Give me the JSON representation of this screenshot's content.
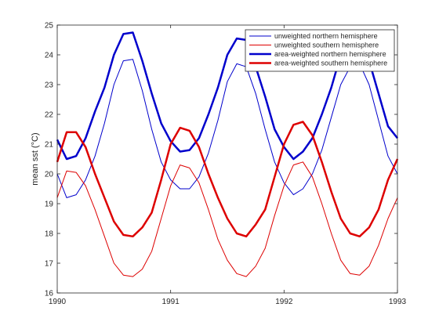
{
  "chart_data": {
    "type": "line",
    "ylabel": "mean sst (°C)",
    "xlim": [
      1990,
      1993
    ],
    "ylim": [
      16,
      25
    ],
    "x_ticks": [
      1990,
      1991,
      1992,
      1993
    ],
    "x_tick_labels": [
      "1990",
      "1991",
      "1992",
      "1993"
    ],
    "y_ticks": [
      16,
      17,
      18,
      19,
      20,
      21,
      22,
      23,
      24,
      25
    ],
    "y_tick_labels": [
      "16",
      "17",
      "18",
      "19",
      "20",
      "21",
      "22",
      "23",
      "24",
      "25"
    ],
    "grid": false,
    "legend_position": "top-right",
    "x": [
      1990.0,
      1990.0833,
      1990.1667,
      1990.25,
      1990.3333,
      1990.4167,
      1990.5,
      1990.5833,
      1990.6667,
      1990.75,
      1990.8333,
      1990.9167,
      1991.0,
      1991.0833,
      1991.1667,
      1991.25,
      1991.3333,
      1991.4167,
      1991.5,
      1991.5833,
      1991.6667,
      1991.75,
      1991.8333,
      1991.9167,
      1992.0,
      1992.0833,
      1992.1667,
      1992.25,
      1992.3333,
      1992.4167,
      1992.5,
      1992.5833,
      1992.6667,
      1992.75,
      1992.8333,
      1992.9167,
      1993.0
    ],
    "series": [
      {
        "name": "unweighted northern hemisphere",
        "color": "#0000cc",
        "width": 1,
        "values": [
          20.0,
          19.2,
          19.3,
          19.8,
          20.6,
          21.7,
          23.0,
          23.8,
          23.85,
          22.8,
          21.5,
          20.4,
          19.8,
          19.5,
          19.5,
          19.9,
          20.7,
          21.8,
          23.1,
          23.7,
          23.6,
          22.7,
          21.5,
          20.4,
          19.7,
          19.3,
          19.5,
          20.0,
          20.8,
          21.9,
          23.0,
          23.6,
          23.7,
          23.0,
          21.8,
          20.6,
          20.0
        ]
      },
      {
        "name": "unweighted southern hemisphere",
        "color": "#dd0000",
        "width": 1,
        "values": [
          19.2,
          20.1,
          20.05,
          19.6,
          18.8,
          17.9,
          17.0,
          16.6,
          16.55,
          16.8,
          17.4,
          18.5,
          19.6,
          20.3,
          20.2,
          19.7,
          18.8,
          17.8,
          17.1,
          16.65,
          16.55,
          16.9,
          17.5,
          18.6,
          19.6,
          20.3,
          20.4,
          19.9,
          19.0,
          18.0,
          17.1,
          16.65,
          16.6,
          16.9,
          17.6,
          18.5,
          19.2
        ]
      },
      {
        "name": "area-weighted northern hemisphere",
        "color": "#0000cc",
        "width": 2.5,
        "values": [
          21.15,
          20.5,
          20.6,
          21.2,
          22.1,
          22.9,
          24.0,
          24.7,
          24.75,
          23.8,
          22.7,
          21.7,
          21.1,
          20.75,
          20.8,
          21.2,
          22.0,
          22.9,
          24.0,
          24.55,
          24.5,
          23.6,
          22.6,
          21.5,
          20.9,
          20.5,
          20.75,
          21.2,
          22.0,
          22.9,
          24.0,
          24.4,
          24.5,
          23.8,
          22.7,
          21.6,
          21.2
        ]
      },
      {
        "name": "area-weighted southern hemisphere",
        "color": "#dd0000",
        "width": 2.5,
        "values": [
          20.4,
          21.4,
          21.4,
          20.9,
          20.0,
          19.2,
          18.4,
          17.95,
          17.9,
          18.2,
          18.7,
          19.8,
          21.0,
          21.55,
          21.45,
          20.9,
          20.0,
          19.2,
          18.5,
          18.0,
          17.9,
          18.3,
          18.8,
          19.9,
          21.0,
          21.65,
          21.75,
          21.3,
          20.4,
          19.4,
          18.5,
          18.0,
          17.9,
          18.2,
          18.8,
          19.8,
          20.5
        ]
      }
    ]
  }
}
